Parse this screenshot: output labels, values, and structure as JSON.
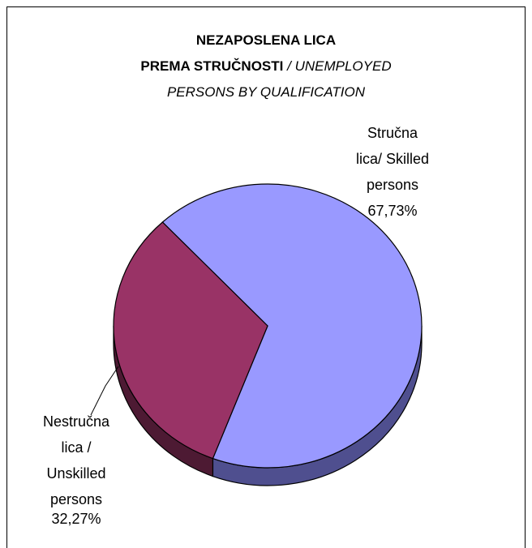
{
  "chart_data": {
    "type": "pie",
    "title": [
      "NEZAPOSLENA LICA",
      "PREMA STRUČNOSTI"
    ],
    "subtitle": [
      "/ UNEMPLOYED",
      "PERSONS BY QUALIFICATION"
    ],
    "categories": [
      "Stručna lica/ Skilled persons",
      "Nestručna lica / Unskilled persons"
    ],
    "values": [
      67.73,
      32.27
    ],
    "value_labels": [
      "67,73%",
      "32,27%"
    ],
    "colors": [
      "#9999ff",
      "#993366"
    ],
    "side_colors": [
      "#4f4f8f",
      "#4d1a33"
    ]
  }
}
